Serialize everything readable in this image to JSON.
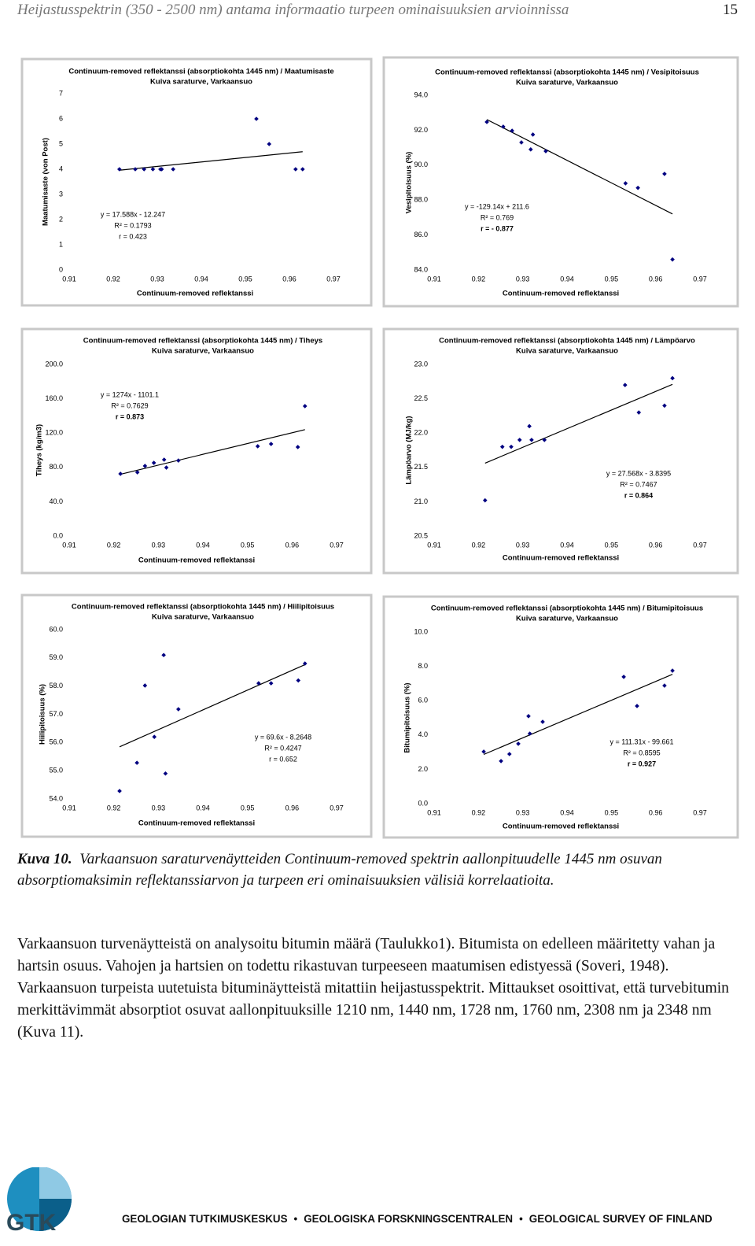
{
  "header": {
    "title": "Heijastusspektrin (350 - 2500 nm) antama informaatio turpeen ominaisuuksien arvioinnissa",
    "page": "15"
  },
  "chart_data": [
    {
      "type": "scatter",
      "title": "Continuum-removed reflektanssi (absorptiokohta 1445 nm) / Maatumisaste",
      "subtitle": "Kuiva saraturve, Varkaansuo",
      "x_label": "Continuum-removed reflektanssi",
      "y_label": "Maatumisaste (von Post)",
      "color": "#000080",
      "xlim": [
        0.91,
        0.97
      ],
      "xticks": [
        0.91,
        0.92,
        0.93,
        0.94,
        0.95,
        0.96,
        0.97
      ],
      "ylim": [
        0,
        7
      ],
      "yticks": [
        0,
        1,
        2,
        3,
        4,
        5,
        6,
        7
      ],
      "x": [
        0.9214,
        0.925,
        0.927,
        0.929,
        0.9307,
        0.931,
        0.9336,
        0.9525,
        0.9554,
        0.9614,
        0.963
      ],
      "values": [
        4,
        4,
        4,
        4,
        4,
        4,
        4,
        6,
        5,
        4,
        4
      ],
      "annotations": [
        "y = 17.588x - 12.247",
        "R² = 0.1793",
        "r = 0.423"
      ]
    },
    {
      "type": "scatter",
      "title": "Continuum-removed reflektanssi (absorptiokohta 1445 nm) / Vesipitoisuus",
      "subtitle": "Kuiva saraturve, Varkaansuo",
      "x_label": "Continuum-removed reflektanssi",
      "y_label": "Vesipitoisuus (%)",
      "color": "#000080",
      "xlim": [
        0.91,
        0.97
      ],
      "xticks": [
        0.91,
        0.92,
        0.93,
        0.94,
        0.95,
        0.96,
        0.97
      ],
      "ylim": [
        84,
        94
      ],
      "yticks": [
        {
          "value": 84,
          "label": "84.0"
        },
        {
          "value": 86,
          "label": "86.0"
        },
        {
          "value": 88,
          "label": "88.0"
        },
        {
          "value": 90,
          "label": "90.0"
        },
        {
          "value": 92,
          "label": "92.0"
        },
        {
          "value": 94,
          "label": "94.0"
        }
      ],
      "x": [
        0.9219,
        0.9256,
        0.9276,
        0.9297,
        0.9318,
        0.9323,
        0.9352,
        0.9532,
        0.956,
        0.962,
        0.9638
      ],
      "values": [
        92.47,
        92.2,
        91.97,
        91.3,
        90.9,
        91.75,
        90.8,
        88.96,
        88.7,
        89.5,
        84.6
      ],
      "annotations": [
        "y = -129.14x + 211.6",
        "R² = 0.769",
        "r = - 0.877"
      ]
    },
    {
      "type": "scatter",
      "title": "Continuum-removed reflektanssi (absorptiokohta 1445 nm) / Tiheys",
      "subtitle": "Kuiva saraturve, Varkaansuo",
      "x_label": "Continuum-removed reflektanssi",
      "y_label": "Tiheys (kg/m3)",
      "color": "#000080",
      "xlim": [
        0.91,
        0.97
      ],
      "xticks": [
        0.91,
        0.92,
        0.93,
        0.94,
        0.95,
        0.96,
        0.97
      ],
      "ylim": [
        0,
        200
      ],
      "yticks": [
        {
          "value": 0,
          "label": "0.0"
        },
        {
          "value": 40,
          "label": "40.0"
        },
        {
          "value": 80,
          "label": "80.0"
        },
        {
          "value": 120,
          "label": "120.0"
        },
        {
          "value": 160,
          "label": "160.0"
        },
        {
          "value": 200,
          "label": "200.0"
        }
      ],
      "x": [
        0.9215,
        0.9253,
        0.927,
        0.929,
        0.9313,
        0.9318,
        0.9345,
        0.9523,
        0.9553,
        0.9613,
        0.9629
      ],
      "values": [
        72.5,
        74.3,
        81.7,
        85.3,
        89,
        79.8,
        88,
        104.6,
        107.3,
        103.7,
        151.4
      ],
      "annotations": [
        "y = 1274x - 1101.1",
        "R² = 0.7629",
        "r = 0.873"
      ]
    },
    {
      "type": "scatter",
      "title": "Continuum-removed reflektanssi (absorptiokohta 1445 nm) / Lämpöarvo",
      "subtitle": "Kuiva saraturve, Varkaansuo",
      "x_label": "Continuum-removed reflektanssi",
      "y_label": "Lämpöarvo (MJ/kg)",
      "color": "#000080",
      "xlim": [
        0.91,
        0.97
      ],
      "xticks": [
        0.91,
        0.92,
        0.93,
        0.94,
        0.95,
        0.96,
        0.97
      ],
      "ylim": [
        20.5,
        23
      ],
      "yticks": [
        20.5,
        {
          "value": 21,
          "label": "21.0"
        },
        21.5,
        {
          "value": 22,
          "label": "22.0"
        },
        22.5,
        {
          "value": 23,
          "label": "23.0"
        }
      ],
      "x": [
        0.9215,
        0.9254,
        0.9274,
        0.9293,
        0.9315,
        0.932,
        0.9349,
        0.9531,
        0.9562,
        0.962,
        0.9638
      ],
      "values": [
        21.02,
        21.8,
        21.8,
        21.9,
        22.1,
        21.9,
        21.9,
        22.7,
        22.3,
        22.4,
        22.8
      ],
      "annotations": [
        "y = 27.568x - 3.8395",
        "R² = 0.7467",
        "r = 0.864"
      ]
    },
    {
      "type": "scatter",
      "title": "Continuum-removed reflektanssi (absorptiokohta 1445 nm) / Hiilipitoisuus",
      "subtitle": "Kuiva saraturve, Varkaansuo",
      "x_label": "Continuum-removed reflektanssi",
      "y_label": "Hiilipitoisuus (%)",
      "color": "#000080",
      "xlim": [
        0.91,
        0.97
      ],
      "xticks": [
        0.91,
        0.92,
        0.93,
        0.94,
        0.95,
        0.96,
        0.97
      ],
      "ylim": [
        54,
        60
      ],
      "yticks": [
        {
          "value": 54,
          "label": "54.0"
        },
        {
          "value": 55,
          "label": "55.0"
        },
        {
          "value": 56,
          "label": "56.0"
        },
        {
          "value": 57,
          "label": "57.0"
        },
        {
          "value": 58,
          "label": "58.0"
        },
        {
          "value": 59,
          "label": "59.0"
        },
        {
          "value": 60,
          "label": "60.0"
        }
      ],
      "x": [
        0.9213,
        0.9252,
        0.927,
        0.9291,
        0.9312,
        0.9316,
        0.9345,
        0.9525,
        0.9553,
        0.9614,
        0.9629
      ],
      "values": [
        54.28,
        55.28,
        58.02,
        56.2,
        59.1,
        54.9,
        57.18,
        58.1,
        58.1,
        58.2,
        58.8
      ],
      "annotations": [
        "y = 69.6x - 8.2648",
        "R² = 0.4247",
        "r = 0.652"
      ]
    },
    {
      "type": "scatter",
      "title": "Continuum-removed reflektanssi (absorptiokohta 1445 nm) / Bitumipitoisuus",
      "subtitle": "Kuiva saraturve, Varkaansuo",
      "x_label": "Continuum-removed reflektanssi",
      "y_label": "Bitumipitoisuus (%)",
      "color": "#000080",
      "xlim": [
        0.91,
        0.97
      ],
      "xticks": [
        0.91,
        0.92,
        0.93,
        0.94,
        0.95,
        0.96,
        0.97
      ],
      "ylim": [
        0,
        10
      ],
      "yticks": [
        {
          "value": 0,
          "label": "0.0"
        },
        {
          "value": 2,
          "label": "2.0"
        },
        {
          "value": 4,
          "label": "4.0"
        },
        {
          "value": 6,
          "label": "6.0"
        },
        {
          "value": 8,
          "label": "8.0"
        },
        {
          "value": 10,
          "label": "10.0"
        }
      ],
      "x": [
        0.9212,
        0.9251,
        0.927,
        0.929,
        0.9313,
        0.9316,
        0.9345,
        0.9528,
        0.9558,
        0.962,
        0.9638
      ],
      "values": [
        3.03,
        2.48,
        2.89,
        3.49,
        5.1,
        4.08,
        4.77,
        7.39,
        5.69,
        6.88,
        7.75
      ],
      "annotations": [
        "y = 111.31x - 99.661",
        "R² = 0.8595",
        "r = 0.927"
      ]
    }
  ],
  "caption": {
    "label": "Kuva 10.",
    "text": "Varkaansuon saraturvenäytteiden Continuum-removed spektrin aallonpituudelle 1445 nm osuvan absorptiomaksimin reflektanssiarvon ja turpeen eri ominaisuuksien välisiä korrelaatioita."
  },
  "body": "Varkaansuon turvenäytteistä on analysoitu bitumin määrä (Taulukko1). Bitumista on edelleen määritetty vahan ja hartsin osuus. Vahojen ja hartsien on todettu rikastuvan turpeeseen maatumisen edistyessä (Soveri, 1948). Varkaansuon turpeista uutetuista bituminäytteistä mitattiin heijastusspektrit. Mittaukset osoittivat, että turvebitumin merkittävimmät absorptiot osuvat aallonpituuksille 1210 nm, 1440 nm, 1728 nm, 1760 nm, 2308 nm ja 2348 nm (Kuva 11).",
  "footer": {
    "logo": "GTK",
    "names": [
      "GEOLOGIAN TUTKIMUSKESKUS",
      "GEOLOGISKA FORSKNINGSCENTRALEN",
      "GEOLOGICAL SURVEY OF FINLAND"
    ]
  }
}
